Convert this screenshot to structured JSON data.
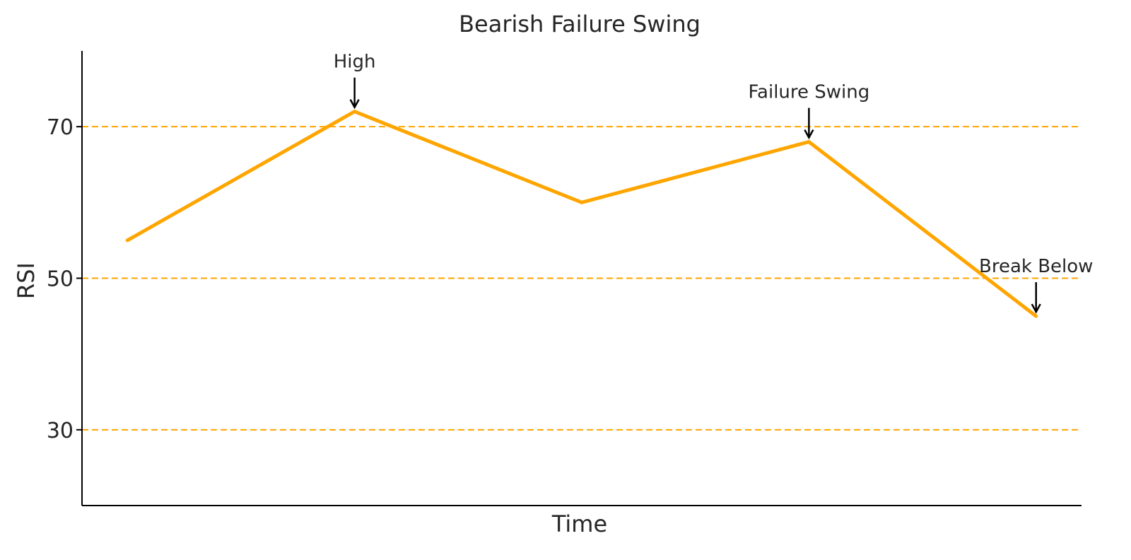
{
  "chart_data": {
    "type": "line",
    "title": "Bearish Failure Swing",
    "xlabel": "Time",
    "ylabel": "RSI",
    "x": [
      0,
      1,
      2,
      3,
      4
    ],
    "xlim": [
      -0.2,
      4.2
    ],
    "ylim": [
      20,
      80
    ],
    "yticks": [
      30,
      50,
      70
    ],
    "grid": false,
    "series": [
      {
        "values": [
          55,
          72,
          60,
          68,
          45
        ],
        "color": "#FFA500"
      }
    ],
    "reference_lines": [
      {
        "y": 70,
        "color": "#FFA500",
        "style": "dashed"
      },
      {
        "y": 50,
        "color": "#FFA500",
        "style": "dashed"
      },
      {
        "y": 30,
        "color": "#FFA500",
        "style": "dashed"
      }
    ],
    "annotations": [
      {
        "text": "High",
        "x": 1,
        "y": 72
      },
      {
        "text": "Failure Swing",
        "x": 3,
        "y": 68
      },
      {
        "text": "Break Below",
        "x": 4,
        "y": 45
      }
    ]
  }
}
